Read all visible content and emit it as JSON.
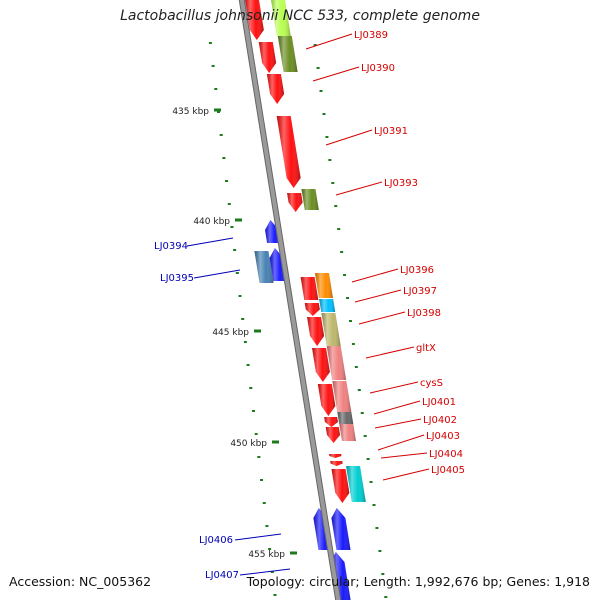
{
  "title": "Lactobacillus johnsonii NCC 533, complete genome",
  "footer": {
    "accession": "Accession: NC_005362",
    "topology": "Topology: circular; Length: 1,992,676 bp; Genes: 1,918"
  },
  "colors": {
    "backbone": "#9a9a9a",
    "forward_label": "#d40000",
    "reverse_label": "#0000b4",
    "tick": "#1e7a1e",
    "red": "#ff1010",
    "blue": "#1a1aff"
  },
  "kbp_ticks": [
    {
      "label": "435 kbp",
      "kbp": 435
    },
    {
      "label": "440 kbp",
      "kbp": 440
    },
    {
      "label": "445 kbp",
      "kbp": 445
    },
    {
      "label": "450 kbp",
      "kbp": 450
    },
    {
      "label": "455 kbp",
      "kbp": 455
    }
  ],
  "forward_genes": [
    {
      "label": "LJ0389"
    },
    {
      "label": "LJ0390"
    },
    {
      "label": "LJ0391"
    },
    {
      "label": "LJ0393"
    },
    {
      "label": "LJ0396"
    },
    {
      "label": "LJ0397"
    },
    {
      "label": "LJ0398"
    },
    {
      "label": "gltX"
    },
    {
      "label": "cysS"
    },
    {
      "label": "LJ0401"
    },
    {
      "label": "LJ0402"
    },
    {
      "label": "LJ0403"
    },
    {
      "label": "LJ0404"
    },
    {
      "label": "LJ0405"
    }
  ],
  "reverse_genes": [
    {
      "label": "LJ0394"
    },
    {
      "label": "LJ0395"
    },
    {
      "label": "LJ0406"
    },
    {
      "label": "LJ0407"
    }
  ]
}
